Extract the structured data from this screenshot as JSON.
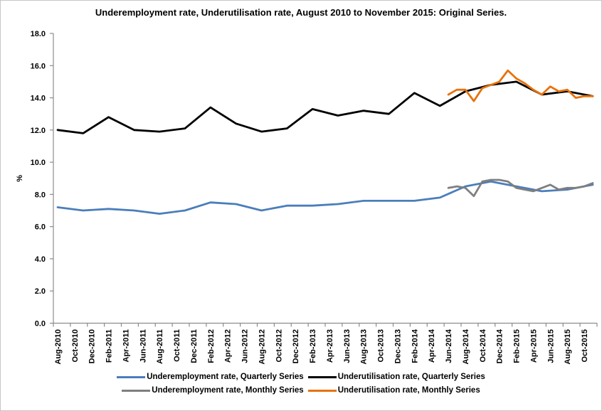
{
  "chart_data": {
    "type": "line",
    "title": "Underemployment rate, Underutilisation rate, August 2010 to November 2015: Original Series.",
    "ylabel": "%",
    "ylim": [
      0,
      18
    ],
    "ytick_labels": [
      "0.0",
      "2.0",
      "4.0",
      "6.0",
      "8.0",
      "10.0",
      "12.0",
      "14.0",
      "16.0",
      "18.0"
    ],
    "grid": false,
    "legend_position": "bottom",
    "x_axis": {
      "unit": "month",
      "first_slot_month": "Aug-2010",
      "last_slot_month": "Nov-2015",
      "n_slots": 64,
      "tick_every": 2,
      "tick_labels": [
        "Aug-2010",
        "Oct-2010",
        "Dec-2010",
        "Feb-2011",
        "Apr-2011",
        "Jun-2011",
        "Aug-2011",
        "Oct-2011",
        "Dec-2011",
        "Feb-2012",
        "Apr-2012",
        "Jun-2012",
        "Aug-2012",
        "Oct-2012",
        "Dec-2012",
        "Feb-2013",
        "Apr-2013",
        "Jun-2013",
        "Aug-2013",
        "Oct-2013",
        "Dec-2013",
        "Feb-2014",
        "Apr-2014",
        "Jun-2014",
        "Aug-2014",
        "Oct-2014",
        "Dec-2014",
        "Feb-2015",
        "Apr-2015",
        "Jun-2015",
        "Aug-2015",
        "Oct-2015"
      ]
    },
    "series": [
      {
        "name": "Underemployment rate, Quarterly Series",
        "color": "#4A7EBB",
        "start_slot": 0,
        "slot_step": 3,
        "x_months": [
          "Aug-2010",
          "Nov-2010",
          "Feb-2011",
          "May-2011",
          "Aug-2011",
          "Nov-2011",
          "Feb-2012",
          "May-2012",
          "Aug-2012",
          "Nov-2012",
          "Feb-2013",
          "May-2013",
          "Aug-2013",
          "Nov-2013",
          "Feb-2014",
          "May-2014",
          "Aug-2014",
          "Nov-2014",
          "Feb-2015",
          "May-2015",
          "Aug-2015",
          "Nov-2015"
        ],
        "values": [
          7.2,
          7.0,
          7.1,
          7.0,
          6.8,
          7.0,
          7.5,
          7.4,
          7.0,
          7.3,
          7.3,
          7.4,
          7.6,
          7.6,
          7.6,
          7.8,
          8.5,
          8.8,
          8.5,
          8.2,
          8.3,
          8.6
        ]
      },
      {
        "name": "Underutilisation rate, Quarterly Series",
        "color": "#000000",
        "start_slot": 0,
        "slot_step": 3,
        "x_months": [
          "Aug-2010",
          "Nov-2010",
          "Feb-2011",
          "May-2011",
          "Aug-2011",
          "Nov-2011",
          "Feb-2012",
          "May-2012",
          "Aug-2012",
          "Nov-2012",
          "Feb-2013",
          "May-2013",
          "Aug-2013",
          "Nov-2013",
          "Feb-2014",
          "May-2014",
          "Aug-2014",
          "Nov-2014",
          "Feb-2015",
          "May-2015",
          "Aug-2015",
          "Nov-2015"
        ],
        "values": [
          12.0,
          11.8,
          12.8,
          12.0,
          11.9,
          12.1,
          13.4,
          12.4,
          11.9,
          12.1,
          13.3,
          12.9,
          13.2,
          13.0,
          14.3,
          13.5,
          14.4,
          14.8,
          15.0,
          14.2,
          14.4,
          14.1
        ]
      },
      {
        "name": "Underemployment rate, Monthly Series",
        "color": "#7F7F7F",
        "start_slot": 46,
        "slot_step": 1,
        "x_months": [
          "Jun-2014",
          "Jul-2014",
          "Aug-2014",
          "Sep-2014",
          "Oct-2014",
          "Nov-2014",
          "Dec-2014",
          "Jan-2015",
          "Feb-2015",
          "Mar-2015",
          "Apr-2015",
          "May-2015",
          "Jun-2015",
          "Jul-2015",
          "Aug-2015",
          "Sep-2015",
          "Oct-2015",
          "Nov-2015"
        ],
        "values": [
          8.4,
          8.5,
          8.4,
          7.9,
          8.8,
          8.9,
          8.9,
          8.8,
          8.4,
          8.3,
          8.2,
          8.4,
          8.6,
          8.3,
          8.4,
          8.4,
          8.5,
          8.7
        ]
      },
      {
        "name": "Underutilisation rate, Monthly Series",
        "color": "#E8720C",
        "start_slot": 46,
        "slot_step": 1,
        "x_months": [
          "Jun-2014",
          "Jul-2014",
          "Aug-2014",
          "Sep-2014",
          "Oct-2014",
          "Nov-2014",
          "Dec-2014",
          "Jan-2015",
          "Feb-2015",
          "Mar-2015",
          "Apr-2015",
          "May-2015",
          "Jun-2015",
          "Jul-2015",
          "Aug-2015",
          "Sep-2015",
          "Oct-2015",
          "Nov-2015"
        ],
        "values": [
          14.2,
          14.5,
          14.5,
          13.8,
          14.6,
          14.8,
          15.0,
          15.7,
          15.2,
          14.9,
          14.5,
          14.2,
          14.7,
          14.4,
          14.5,
          14.0,
          14.1,
          14.1
        ]
      }
    ],
    "colors": {
      "axis": "#8C8C8C",
      "text": "#000000",
      "background": "#FFFFFF"
    }
  }
}
